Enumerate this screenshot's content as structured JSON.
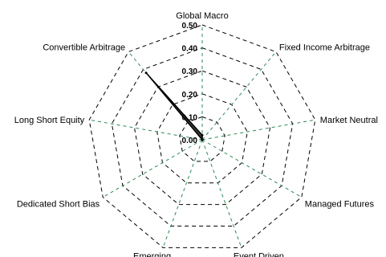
{
  "chart_data": {
    "type": "radar",
    "categories": [
      "Global Macro",
      "Fixed Income Arbitrage",
      "Market Neutral",
      "Managed Futures",
      "Event Driven",
      "Emerging",
      "Dedicated Short Bias",
      "Long Short Equity",
      "Convertible Arbitrage"
    ],
    "series": [
      {
        "values": [
          0.02,
          0.0,
          0.0,
          0.0,
          0.0,
          0.0,
          0.0,
          0.0,
          0.38
        ]
      }
    ],
    "rlim": [
      0,
      0.5
    ],
    "ticks": [
      "0.00",
      "0.10",
      "0.20",
      "0.30",
      "0.40",
      "0.50"
    ],
    "grid": true,
    "colors": {
      "ring": "#000000",
      "spoke": "#2e8b57",
      "series_fill": "#1a1a1a",
      "series_stroke": "#000000"
    }
  }
}
